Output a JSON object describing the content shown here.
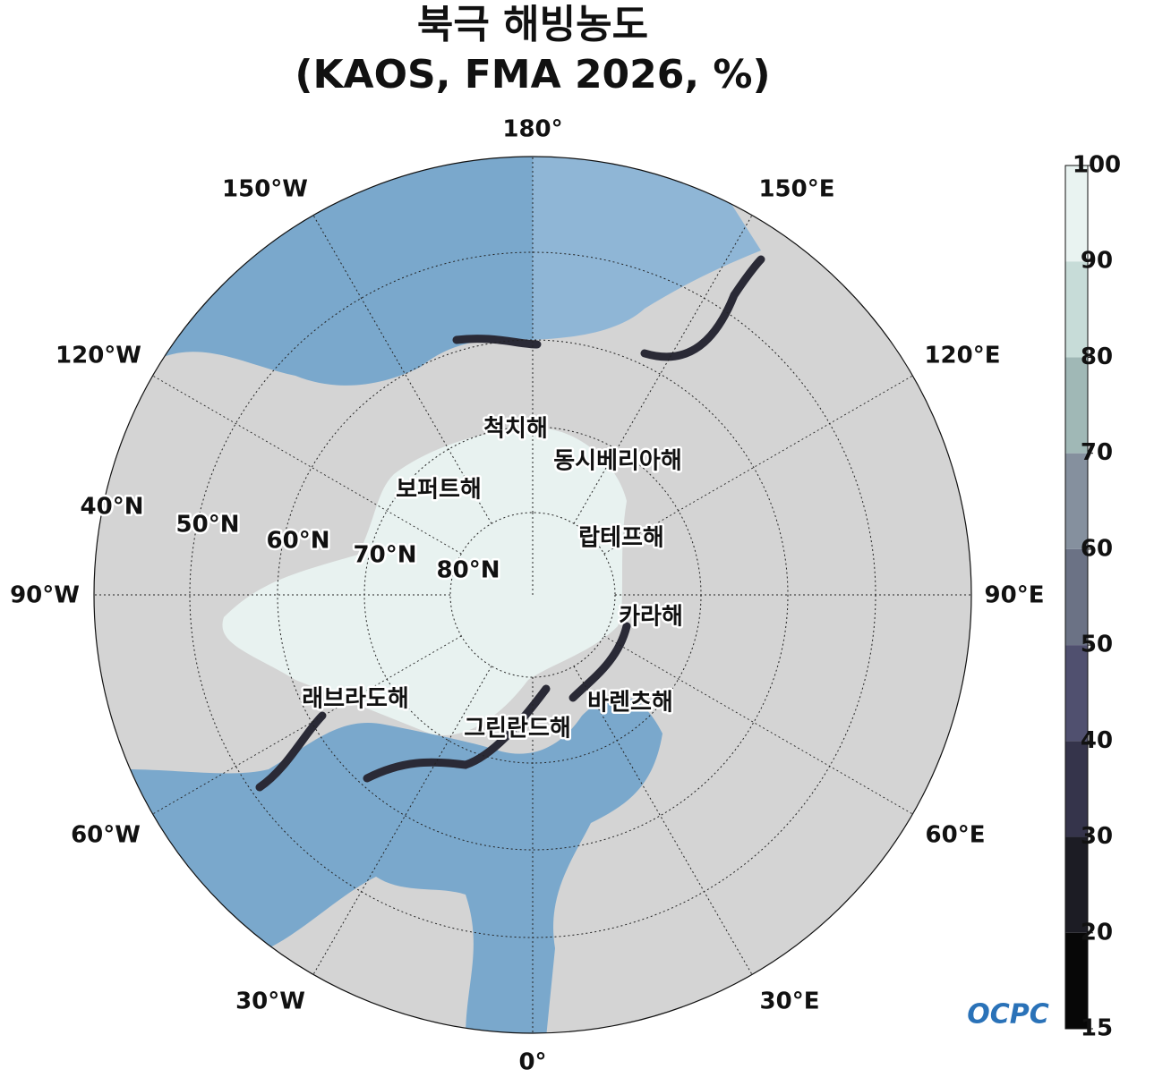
{
  "title": [
    "북극 해빙농도",
    "(KAOS, FMA 2026, %)"
  ],
  "longitude_labels": [
    "180°",
    "150°E",
    "120°E",
    "90°E",
    "60°E",
    "30°E",
    "0°",
    "30°W",
    "60°W",
    "90°W",
    "120°W",
    "150°W"
  ],
  "latitude_labels": [
    "40°N",
    "50°N",
    "60°N",
    "70°N",
    "80°N"
  ],
  "sea_names": [
    "척치해",
    "동시베리아해",
    "보퍼트해",
    "랍테프해",
    "카라해",
    "래브라도해",
    "바렌츠해",
    "그린란드해"
  ],
  "colorbar": {
    "ticks": [
      15,
      20,
      30,
      40,
      50,
      60,
      70,
      80,
      90,
      100
    ],
    "colors": [
      "#070707",
      "#1c1c24",
      "#35344b",
      "#50506f",
      "#6b7285",
      "#85909e",
      "#a0b8b6",
      "#c7dcd8",
      "#e9f3f1"
    ]
  },
  "logo": "OCPC"
}
